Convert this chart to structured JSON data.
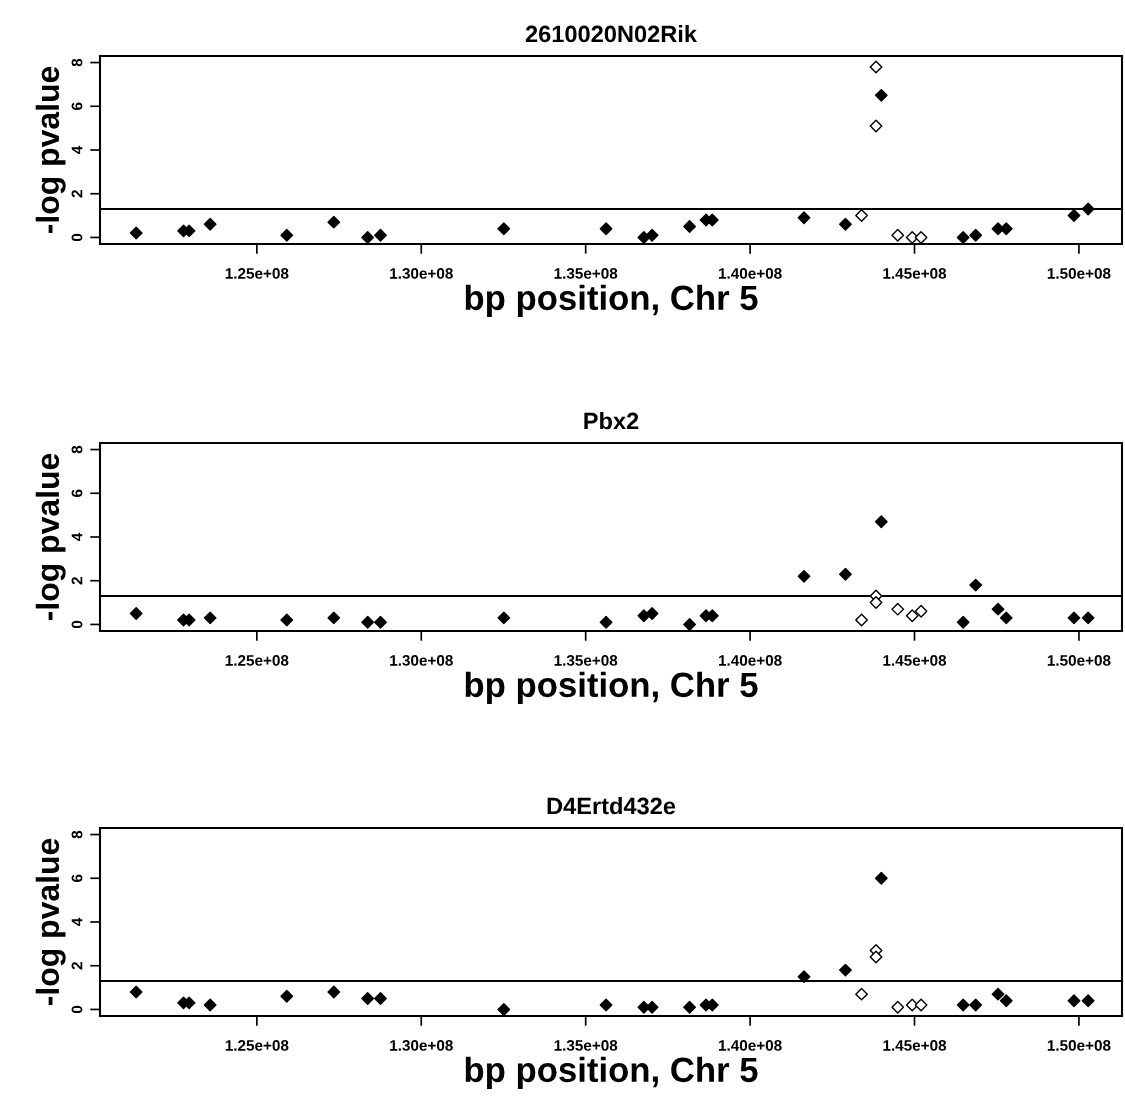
{
  "chart_data": [
    {
      "type": "scatter",
      "title": "2610020N02Rik",
      "xlabel": "bp position, Chr 5",
      "ylabel": "-log pvalue",
      "marker": "diamond",
      "grid": false,
      "xlim": [
        120230000,
        151310000
      ],
      "ylim": [
        -0.3,
        8.3
      ],
      "xticks": [
        {
          "value": 125000000,
          "label": "1.25e+08"
        },
        {
          "value": 130000000,
          "label": "1.30e+08"
        },
        {
          "value": 135000000,
          "label": "1.35e+08"
        },
        {
          "value": 140000000,
          "label": "1.40e+08"
        },
        {
          "value": 145000000,
          "label": "1.45e+08"
        },
        {
          "value": 150000000,
          "label": "1.50e+08"
        }
      ],
      "yticks": [
        0,
        2,
        4,
        6,
        8
      ],
      "ref_lines": [
        {
          "axis": "y",
          "value": 1.3,
          "color": "#000000"
        }
      ],
      "series": [
        {
          "color": "#000000",
          "x": [
            121330000,
            122770000,
            122940000,
            123580000,
            125910000,
            127340000,
            128370000,
            128760000,
            132510000,
            135620000,
            136770000,
            137020000,
            138160000,
            138660000,
            138850000,
            141640000,
            142900000,
            143990000,
            146480000,
            146860000,
            147540000,
            147790000,
            149850000,
            150280000
          ],
          "values": [
            0.2,
            0.3,
            0.3,
            0.6,
            0.1,
            0.7,
            0.0,
            0.1,
            0.4,
            0.4,
            0.0,
            0.1,
            0.5,
            0.8,
            0.8,
            0.9,
            0.6,
            6.5,
            0.0,
            0.1,
            0.4,
            0.4,
            1.0,
            1.3
          ]
        },
        {
          "color": "#ffffff",
          "x": [
            143390000,
            143830000,
            143830000,
            144490000,
            144930000,
            145200000
          ],
          "values": [
            1.0,
            7.8,
            5.1,
            0.1,
            0.0,
            0.0
          ]
        }
      ]
    },
    {
      "type": "scatter",
      "title": "Pbx2",
      "xlabel": "bp position, Chr 5",
      "ylabel": "-log pvalue",
      "marker": "diamond",
      "grid": false,
      "xlim": [
        120230000,
        151310000
      ],
      "ylim": [
        -0.3,
        8.3
      ],
      "xticks": [
        {
          "value": 125000000,
          "label": "1.25e+08"
        },
        {
          "value": 130000000,
          "label": "1.30e+08"
        },
        {
          "value": 135000000,
          "label": "1.35e+08"
        },
        {
          "value": 140000000,
          "label": "1.40e+08"
        },
        {
          "value": 145000000,
          "label": "1.45e+08"
        },
        {
          "value": 150000000,
          "label": "1.50e+08"
        }
      ],
      "yticks": [
        0,
        2,
        4,
        6,
        8
      ],
      "ref_lines": [
        {
          "axis": "y",
          "value": 1.3,
          "color": "#000000"
        }
      ],
      "series": [
        {
          "color": "#000000",
          "x": [
            121330000,
            122770000,
            122940000,
            123580000,
            125910000,
            127340000,
            128370000,
            128760000,
            132510000,
            135620000,
            136770000,
            137020000,
            138160000,
            138660000,
            138850000,
            141640000,
            142900000,
            143990000,
            146480000,
            146860000,
            147540000,
            147790000,
            149850000,
            150280000
          ],
          "values": [
            0.5,
            0.2,
            0.2,
            0.3,
            0.2,
            0.3,
            0.1,
            0.1,
            0.3,
            0.1,
            0.4,
            0.5,
            0.0,
            0.4,
            0.4,
            2.2,
            2.3,
            4.7,
            0.1,
            1.8,
            0.7,
            0.3,
            0.3,
            0.3
          ]
        },
        {
          "color": "#ffffff",
          "x": [
            143390000,
            143830000,
            143830000,
            144490000,
            144930000,
            145200000
          ],
          "values": [
            0.2,
            1.3,
            1.0,
            0.7,
            0.4,
            0.6
          ]
        }
      ]
    },
    {
      "type": "scatter",
      "title": "D4Ertd432e",
      "xlabel": "bp position, Chr 5",
      "ylabel": "-log pvalue",
      "marker": "diamond",
      "grid": false,
      "xlim": [
        120230000,
        151310000
      ],
      "ylim": [
        -0.3,
        8.3
      ],
      "xticks": [
        {
          "value": 125000000,
          "label": "1.25e+08"
        },
        {
          "value": 130000000,
          "label": "1.30e+08"
        },
        {
          "value": 135000000,
          "label": "1.35e+08"
        },
        {
          "value": 140000000,
          "label": "1.40e+08"
        },
        {
          "value": 145000000,
          "label": "1.45e+08"
        },
        {
          "value": 150000000,
          "label": "1.50e+08"
        }
      ],
      "yticks": [
        0,
        2,
        4,
        6,
        8
      ],
      "ref_lines": [
        {
          "axis": "y",
          "value": 1.3,
          "color": "#000000"
        }
      ],
      "series": [
        {
          "color": "#000000",
          "x": [
            121330000,
            122770000,
            122940000,
            123580000,
            125910000,
            127340000,
            128370000,
            128760000,
            132510000,
            135620000,
            136770000,
            137020000,
            138160000,
            138660000,
            138850000,
            141640000,
            142900000,
            143990000,
            146480000,
            146860000,
            147540000,
            147790000,
            149850000,
            150280000
          ],
          "values": [
            0.8,
            0.3,
            0.3,
            0.2,
            0.6,
            0.8,
            0.5,
            0.5,
            0.0,
            0.2,
            0.1,
            0.1,
            0.1,
            0.2,
            0.2,
            1.5,
            1.8,
            6.0,
            0.2,
            0.2,
            0.7,
            0.4,
            0.4,
            0.4
          ]
        },
        {
          "color": "#ffffff",
          "x": [
            143390000,
            143830000,
            143830000,
            144490000,
            144930000,
            145200000
          ],
          "values": [
            0.7,
            2.7,
            2.4,
            0.1,
            0.2,
            0.2
          ]
        }
      ]
    }
  ]
}
